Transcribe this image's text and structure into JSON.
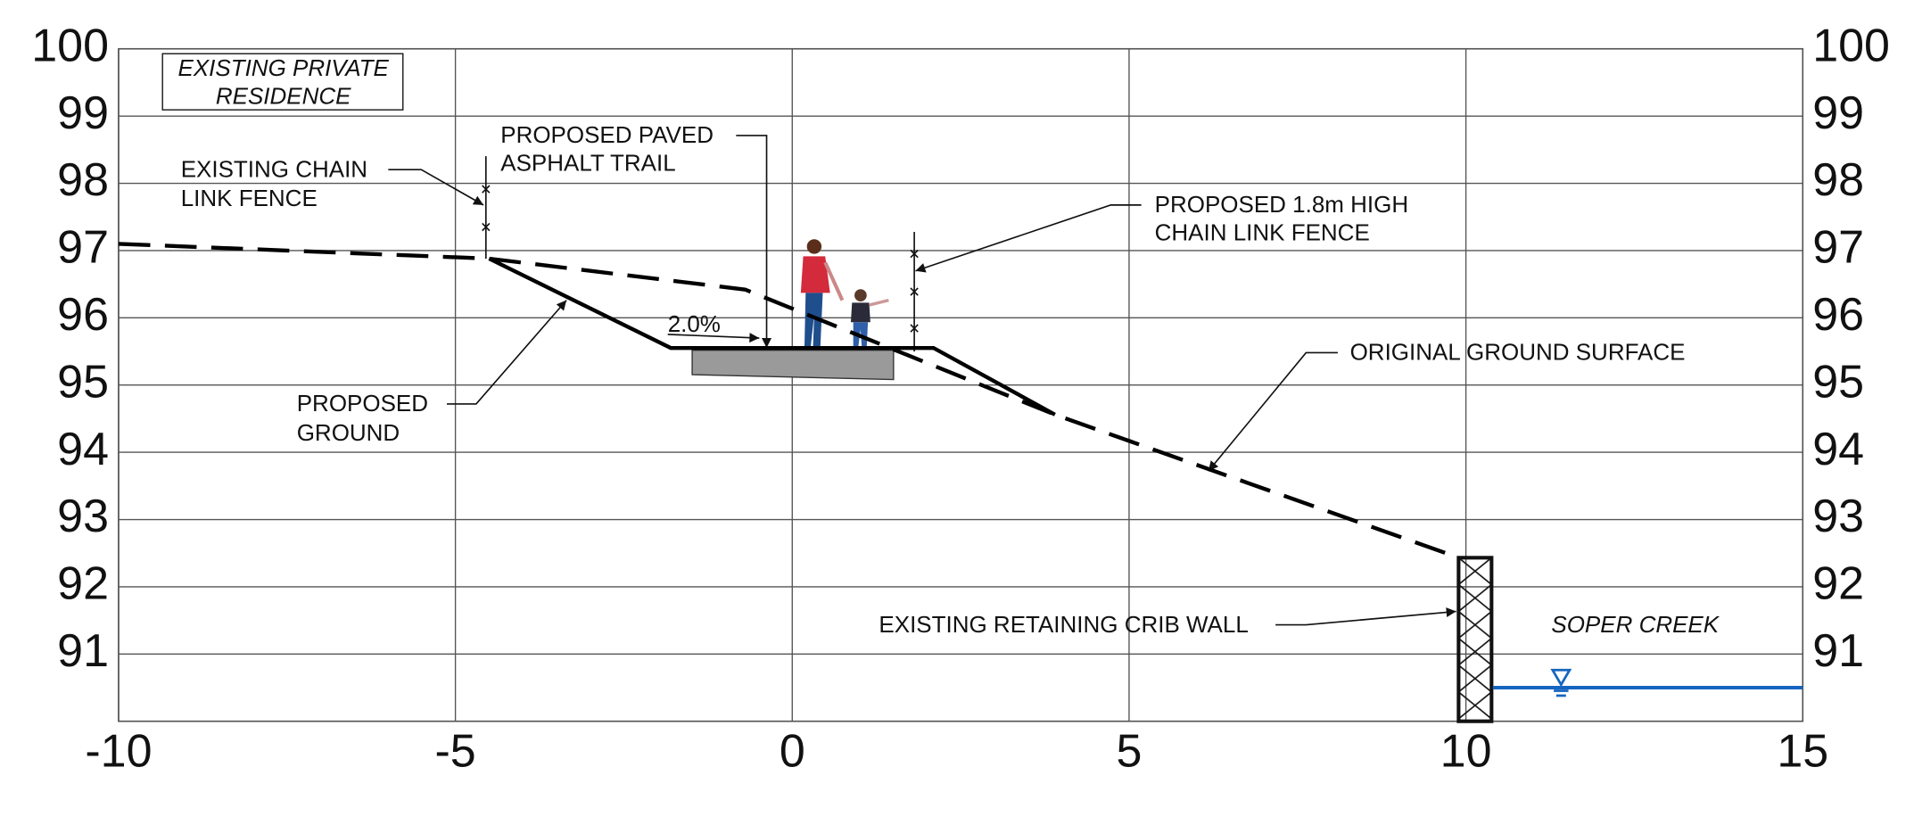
{
  "chart_data": {
    "type": "line",
    "xlim": [
      -10,
      15
    ],
    "ylim": [
      90,
      100
    ],
    "xticks": [
      -10,
      -5,
      0,
      5,
      10,
      15
    ],
    "yticks": [
      91,
      92,
      93,
      94,
      95,
      96,
      97,
      98,
      99,
      100
    ],
    "grid": true,
    "series": [
      {
        "line_style": "dashed",
        "color": "#000000",
        "x": [
          -10,
          -4.5,
          -0.7,
          3.9,
          9.9
        ],
        "values": [
          97.1,
          96.88,
          96.42,
          94.56,
          92.43
        ]
      },
      {
        "line_style": "solid",
        "color": "#000000",
        "x": [
          -4.5,
          -1.8,
          2.1,
          3.9
        ],
        "values": [
          96.88,
          95.55,
          95.55,
          94.56
        ]
      },
      {
        "line_style": "solid",
        "color": "#1565c0",
        "x": [
          10.4,
          15
        ],
        "values": [
          90.5,
          90.5
        ]
      }
    ],
    "annotations": [
      {
        "lines": [
          "EXISTING PRIVATE",
          "RESIDENCE"
        ]
      },
      {
        "lines": [
          "EXISTING CHAIN",
          "LINK FENCE"
        ]
      },
      {
        "lines": [
          "PROPOSED PAVED",
          "ASPHALT TRAIL"
        ]
      },
      {
        "lines": [
          "PROPOSED 1.8m HIGH",
          "CHAIN LINK FENCE"
        ]
      },
      {
        "lines": [
          "ORIGINAL GROUND SURFACE"
        ]
      },
      {
        "lines": [
          "PROPOSED",
          "GROUND"
        ]
      },
      {
        "lines": [
          "EXISTING RETAINING CRIB WALL"
        ]
      },
      {
        "lines": [
          "SOPER CREEK"
        ]
      },
      {
        "lines": [
          "2.0%"
        ]
      }
    ]
  }
}
